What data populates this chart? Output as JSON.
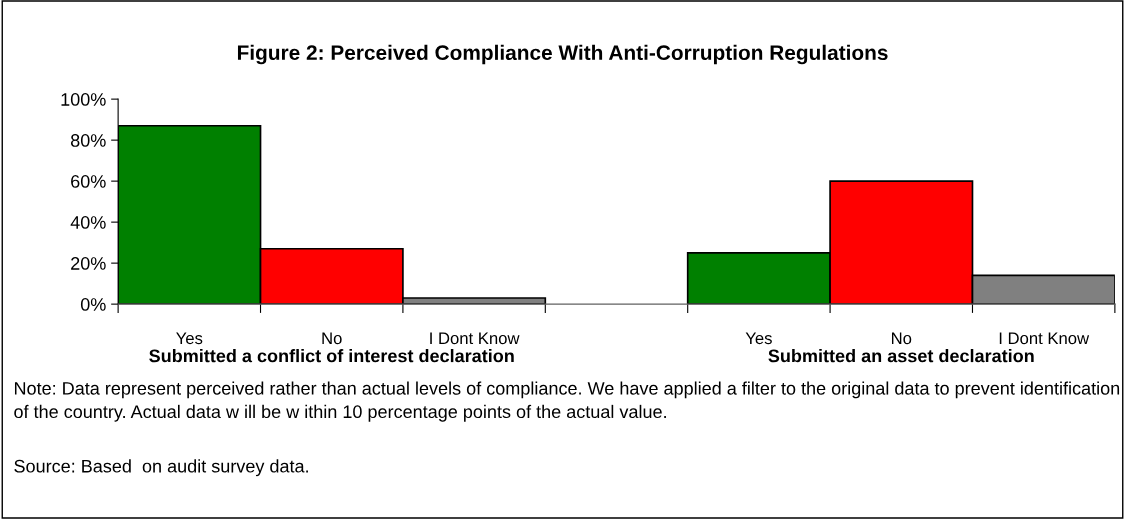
{
  "chart_data": {
    "type": "bar",
    "title": "Figure 2: Perceived Compliance With Anti-Corruption Regulations",
    "categories": [
      "Yes",
      "No",
      "I Dont Know",
      null,
      "Yes",
      "No",
      "I Dont Know"
    ],
    "values": [
      87,
      27,
      3,
      null,
      25,
      60,
      14
    ],
    "colors": [
      "#008000",
      "#ff0000",
      "#808080",
      "#808080",
      "#008000",
      "#ff0000",
      "#808080"
    ],
    "ylim": [
      0,
      100
    ],
    "yticks": [
      {
        "value": 0,
        "label": "0%"
      },
      {
        "value": 20,
        "label": "20%"
      },
      {
        "value": 40,
        "label": "40%"
      },
      {
        "value": 60,
        "label": "60%"
      },
      {
        "value": 80,
        "label": "80%"
      },
      {
        "value": 100,
        "label": "100%"
      }
    ],
    "grid": false,
    "legend": false,
    "annotations": [
      "Submitted a conflict of interest declaration",
      "Submitted an asset declaration",
      "Note: Data represent perceived rather than actual levels of compliance. We have applied a filter to the original data to prevent identification of the country. Actual data w ill be w ithin 10 percentage points of the actual value.",
      "Source: Based  on audit survey data."
    ]
  }
}
